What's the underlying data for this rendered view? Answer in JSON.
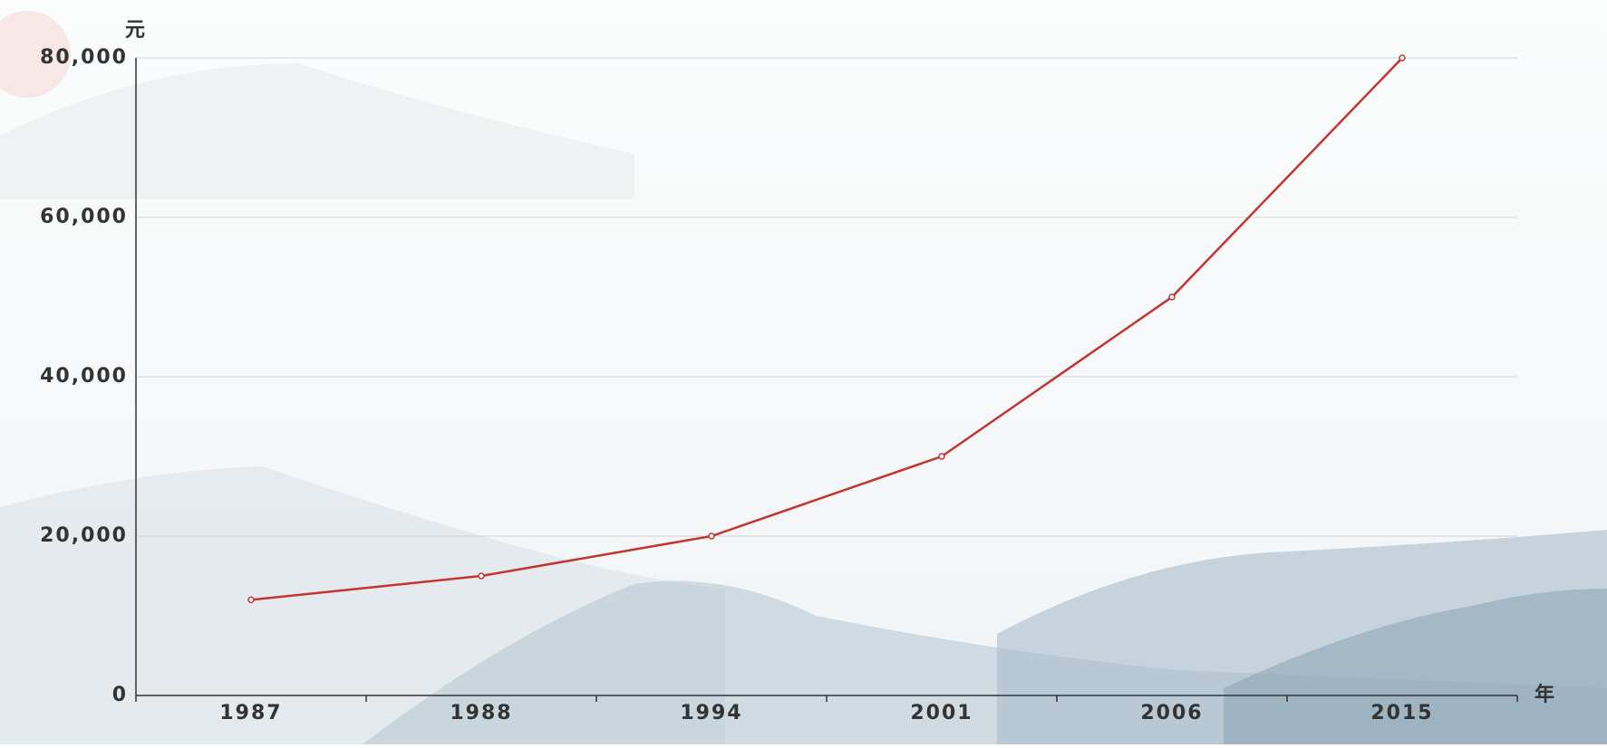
{
  "chart_data": {
    "type": "line",
    "y_axis_label": "元",
    "x_axis_label": "年",
    "categories": [
      "1987",
      "1988",
      "1994",
      "2001",
      "2006",
      "2015"
    ],
    "series": [
      {
        "name": "元",
        "color": "#c23531",
        "values": [
          12000,
          15000,
          20000,
          30000,
          50000,
          80000
        ]
      }
    ],
    "ylim": [
      0,
      80000
    ],
    "yticks": [
      0,
      {
        "value": 20000,
        "label": "20,000"
      },
      {
        "value": 40000,
        "label": "40,000"
      },
      {
        "value": 60000,
        "label": "60,000"
      },
      {
        "value": 80000,
        "label": "80,000"
      }
    ],
    "grid": true
  }
}
